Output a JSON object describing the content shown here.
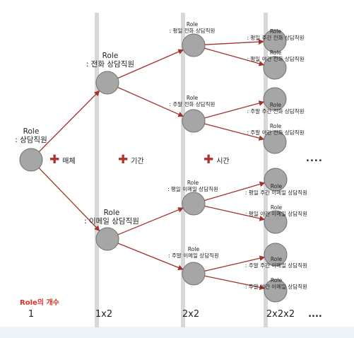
{
  "operators": [
    "매체",
    "기간",
    "시간"
  ],
  "ellipsis": "....",
  "count_title": "Role의 개수",
  "counts": [
    "1",
    "1x2",
    "2x2",
    "2x2x2",
    "...."
  ],
  "tree": {
    "root": {
      "label_1": "Role",
      "label_2": ": 상담직원"
    },
    "level1": [
      {
        "label_1": "Role",
        "label_2": ": 전화 상담직원"
      },
      {
        "label_1": "Role",
        "label_2": ": 이메일 상담직원"
      }
    ],
    "level2": [
      {
        "label_1": "Role",
        "label_2": ": 평일 전화 상담직원"
      },
      {
        "label_1": "Role",
        "label_2": ": 주말 전화 상담직원"
      },
      {
        "label_1": "Role",
        "label_2": ": 평일 이메일 상담직원"
      },
      {
        "label_1": "Role",
        "label_2": ": 주말 이메일 상담직원"
      }
    ],
    "level3": [
      {
        "label_1": "Role",
        "label_2": ": 평일 주간 전화 상담직원"
      },
      {
        "label_1": "Role",
        "label_2": ": 평일 야간 전화 상담직원"
      },
      {
        "label_1": "Role",
        "label_2": ": 주말 주간 전화 상담직원"
      },
      {
        "label_1": "Role",
        "label_2": ": 주말 야간 전화 상담직원"
      },
      {
        "label_1": "Role",
        "label_2": ": 평일 주간 이메일 상담직원"
      },
      {
        "label_1": "Role",
        "label_2": ": 평일 야간 이메일 상담직원"
      },
      {
        "label_1": "Role",
        "label_2": ": 주말 주간 이메일 상담직원"
      },
      {
        "label_1": "Role",
        "label_2": ": 주말 야간 이메일 상담직원"
      }
    ]
  },
  "colors": {
    "edge": "#a3322c",
    "node_fill": "#a6a6a6",
    "node_stroke": "#6e6e6e",
    "column": "#d8d8d8",
    "accent": "#e03026"
  }
}
